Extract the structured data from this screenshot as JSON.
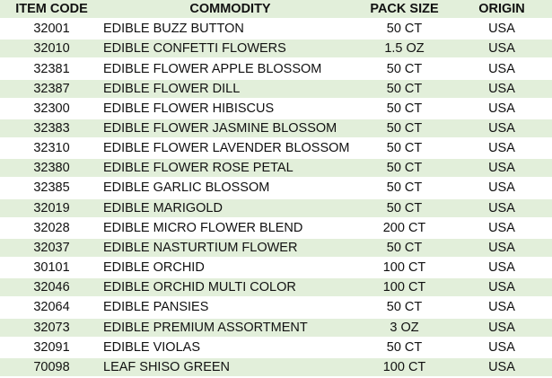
{
  "header": {
    "item_code": "ITEM CODE",
    "commodity": "COMMODITY",
    "pack_size": "PACK SIZE",
    "origin": "ORIGIN"
  },
  "colors": {
    "stripe": "#e2efda"
  },
  "rows": [
    {
      "item_code": "32001",
      "commodity": "EDIBLE BUZZ BUTTON",
      "pack_size": "50 CT",
      "origin": "USA"
    },
    {
      "item_code": "32010",
      "commodity": "EDIBLE CONFETTI FLOWERS",
      "pack_size": "1.5 OZ",
      "origin": "USA"
    },
    {
      "item_code": "32381",
      "commodity": "EDIBLE FLOWER APPLE BLOSSOM",
      "pack_size": "50 CT",
      "origin": "USA"
    },
    {
      "item_code": "32387",
      "commodity": "EDIBLE FLOWER DILL",
      "pack_size": "50 CT",
      "origin": "USA"
    },
    {
      "item_code": "32300",
      "commodity": "EDIBLE FLOWER HIBISCUS",
      "pack_size": "50 CT",
      "origin": "USA"
    },
    {
      "item_code": "32383",
      "commodity": "EDIBLE FLOWER JASMINE BLOSSOM",
      "pack_size": "50 CT",
      "origin": "USA"
    },
    {
      "item_code": "32310",
      "commodity": "EDIBLE FLOWER LAVENDER BLOSSOM",
      "pack_size": "50 CT",
      "origin": "USA"
    },
    {
      "item_code": "32380",
      "commodity": "EDIBLE FLOWER ROSE PETAL",
      "pack_size": "50 CT",
      "origin": "USA"
    },
    {
      "item_code": "32385",
      "commodity": "EDIBLE GARLIC BLOSSOM",
      "pack_size": "50 CT",
      "origin": "USA"
    },
    {
      "item_code": "32019",
      "commodity": "EDIBLE MARIGOLD",
      "pack_size": "50 CT",
      "origin": "USA"
    },
    {
      "item_code": "32028",
      "commodity": "EDIBLE MICRO FLOWER BLEND",
      "pack_size": "200 CT",
      "origin": "USA"
    },
    {
      "item_code": "32037",
      "commodity": "EDIBLE NASTURTIUM FLOWER",
      "pack_size": "50 CT",
      "origin": "USA"
    },
    {
      "item_code": "30101",
      "commodity": "EDIBLE ORCHID",
      "pack_size": "100 CT",
      "origin": "USA"
    },
    {
      "item_code": "32046",
      "commodity": "EDIBLE ORCHID MULTI COLOR",
      "pack_size": "100 CT",
      "origin": "USA"
    },
    {
      "item_code": "32064",
      "commodity": "EDIBLE PANSIES",
      "pack_size": "50 CT",
      "origin": "USA"
    },
    {
      "item_code": "32073",
      "commodity": "EDIBLE PREMIUM ASSORTMENT",
      "pack_size": "3 OZ",
      "origin": "USA"
    },
    {
      "item_code": "32091",
      "commodity": "EDIBLE VIOLAS",
      "pack_size": "50 CT",
      "origin": "USA"
    },
    {
      "item_code": "70098",
      "commodity": "LEAF SHISO GREEN",
      "pack_size": "100 CT",
      "origin": "USA"
    }
  ]
}
